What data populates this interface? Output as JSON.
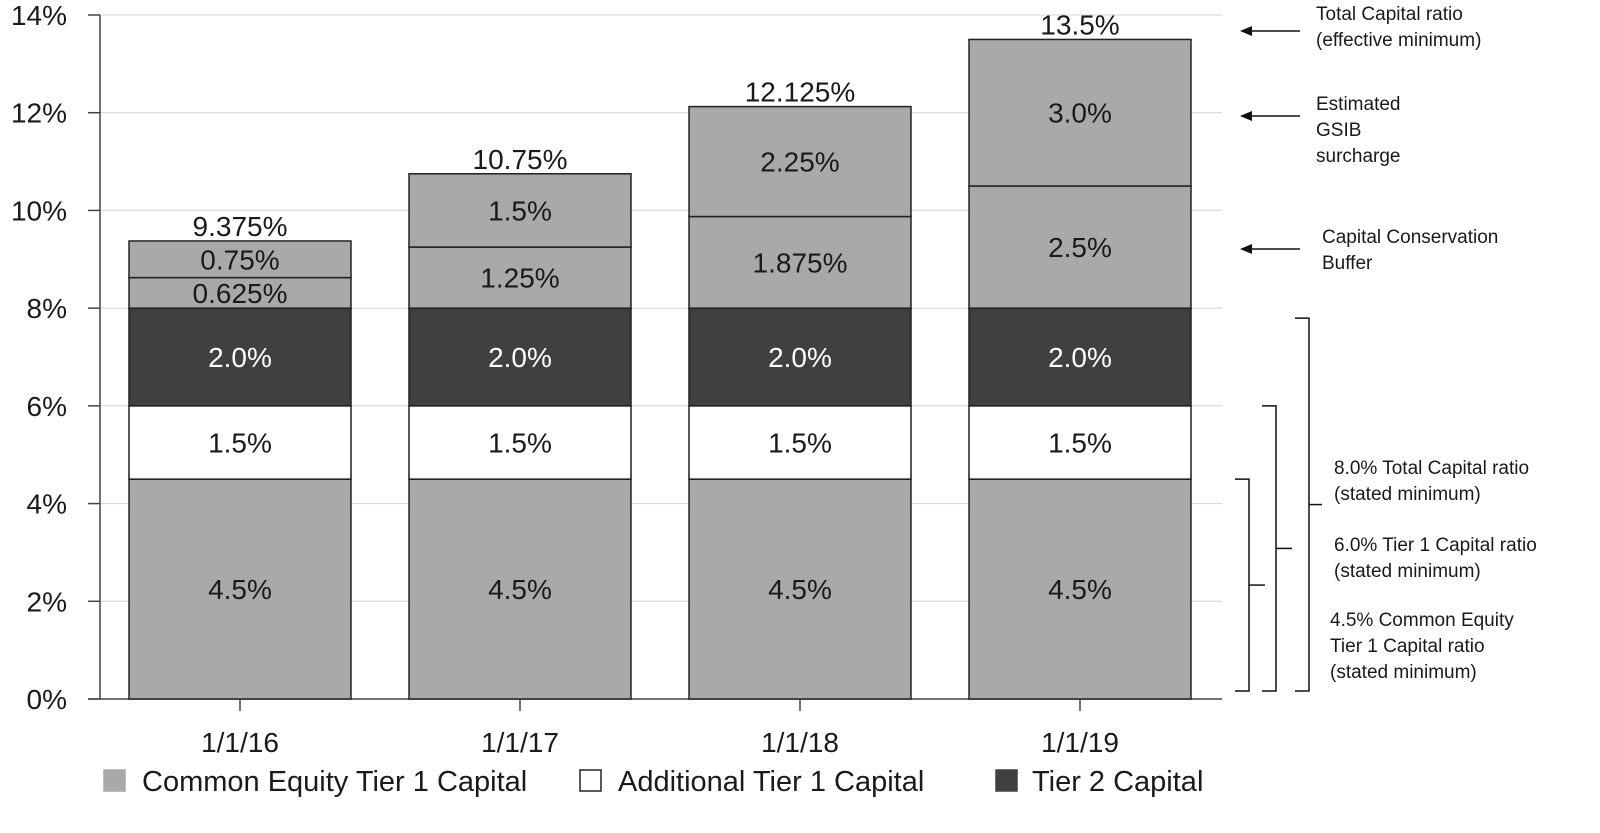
{
  "chart_data": {
    "type": "bar",
    "stacked": true,
    "categories": [
      "1/1/16",
      "1/1/17",
      "1/1/18",
      "1/1/19"
    ],
    "ylim": [
      0,
      14
    ],
    "yticks": [
      0,
      2,
      4,
      6,
      8,
      10,
      12,
      14
    ],
    "ytick_labels": [
      "0%",
      "2%",
      "4%",
      "6%",
      "8%",
      "10%",
      "12%",
      "14%"
    ],
    "grid": true,
    "legend_position": "bottom",
    "series": [
      {
        "name": "Common Equity Tier 1 Capital",
        "color": "#a9a9a9",
        "text_color": "#1a1a1a",
        "values": [
          4.5,
          4.5,
          4.5,
          4.5
        ],
        "labels": [
          "4.5%",
          "4.5%",
          "4.5%",
          "4.5%"
        ]
      },
      {
        "name": "Additional Tier 1 Capital",
        "color": "#ffffff",
        "text_color": "#1a1a1a",
        "values": [
          1.5,
          1.5,
          1.5,
          1.5
        ],
        "labels": [
          "1.5%",
          "1.5%",
          "1.5%",
          "1.5%"
        ]
      },
      {
        "name": "Tier 2 Capital",
        "color": "#404040",
        "text_color": "#ffffff",
        "values": [
          2.0,
          2.0,
          2.0,
          2.0
        ],
        "labels": [
          "2.0%",
          "2.0%",
          "2.0%",
          "2.0%"
        ]
      },
      {
        "name": "Capital Conservation Buffer",
        "legend": false,
        "color": "#a9a9a9",
        "text_color": "#1a1a1a",
        "values": [
          0.625,
          1.25,
          1.875,
          2.5
        ],
        "labels": [
          "0.625%",
          "1.25%",
          "1.875%",
          "2.5%"
        ]
      },
      {
        "name": "Estimated GSIB surcharge",
        "legend": false,
        "color": "#a9a9a9",
        "text_color": "#1a1a1a",
        "values": [
          0.75,
          1.5,
          2.25,
          3.0
        ],
        "labels": [
          "0.75%",
          "1.5%",
          "2.25%",
          "3.0%"
        ]
      }
    ],
    "totals": [
      9.375,
      10.75,
      12.125,
      13.5
    ],
    "total_labels": [
      "9.375%",
      "10.75%",
      "12.125%",
      "13.5%"
    ],
    "right_annotations": [
      {
        "lines": [
          "Total Capital ratio",
          "(effective minimum)"
        ],
        "arrow_value": 13.5
      },
      {
        "lines": [
          "Estimated",
          "GSIB",
          "surcharge"
        ],
        "arrow_value": 12.0
      },
      {
        "lines": [
          "Capital Conservation",
          "Buffer"
        ],
        "arrow_value": 9.25
      }
    ],
    "bracket_annotations": [
      {
        "lines": [
          "8.0% Total Capital ratio",
          "(stated minimum)"
        ],
        "from": 0,
        "to": 8.0
      },
      {
        "lines": [
          "6.0% Tier 1 Capital ratio",
          "(stated minimum)"
        ],
        "from": 0,
        "to": 6.0
      },
      {
        "lines": [
          "4.5% Common Equity",
          "Tier 1 Capital ratio",
          "(stated minimum)"
        ],
        "from": 0,
        "to": 4.5
      }
    ]
  }
}
